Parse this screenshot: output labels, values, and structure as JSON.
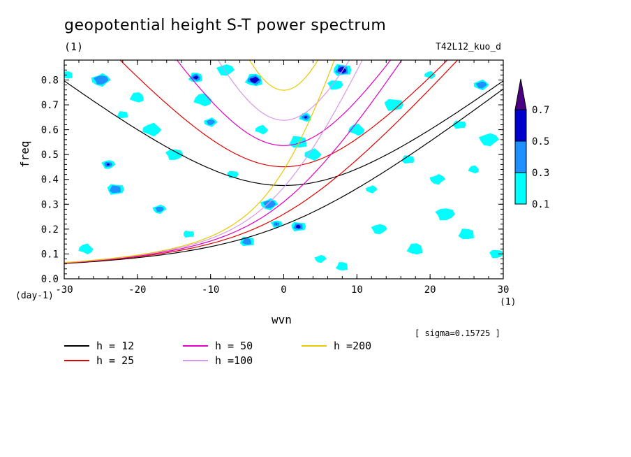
{
  "title": "geopotential height S-T power spectrum",
  "units_top": "(1)",
  "run_label": "T42L12_kuo_d",
  "xlabel": "wvn",
  "ylabel": "freq",
  "y_units": "(day-1)",
  "x_units": "(1)",
  "sigma_text": "[ sigma=0.15725 ]",
  "chart_data": {
    "type": "contour",
    "xlabel": "wvn",
    "ylabel": "freq",
    "xlim": [
      -30,
      30
    ],
    "ylim": [
      0,
      0.88
    ],
    "x_ticks": [
      -30,
      -20,
      -10,
      0,
      10,
      20,
      30
    ],
    "x_tick_labels": [
      "-30",
      "-20",
      "-10",
      "0",
      "10",
      "20",
      "30"
    ],
    "y_ticks": [
      0,
      0.1,
      0.2,
      0.3,
      0.4,
      0.5,
      0.6,
      0.7,
      0.8
    ],
    "y_tick_labels": [
      "0.0",
      "0.1",
      "0.2",
      "0.3",
      "0.4",
      "0.5",
      "0.6",
      "0.7",
      "0.8"
    ],
    "colorbar": {
      "levels": [
        0.1,
        0.3,
        0.5,
        0.7
      ],
      "level_labels": [
        "0.1",
        "0.3",
        "0.5",
        "0.7"
      ],
      "colors": [
        "#00ffff",
        "#1e90ff",
        "#0000cd",
        "#4b0082"
      ]
    },
    "dispersion_curves": [
      {
        "name": "h = 12",
        "color": "#000000",
        "h": 12
      },
      {
        "name": "h = 25",
        "color": "#e00000",
        "h": 25
      },
      {
        "name": "h = 50",
        "color": "#e000c0",
        "h": 50
      },
      {
        "name": "h =100",
        "color": "#d898e8",
        "h": 100
      },
      {
        "name": "h =200",
        "color": "#e8c800",
        "h": 200
      }
    ],
    "spots": [
      [
        -29.5,
        0.82,
        0.15
      ],
      [
        -27,
        0.12,
        0.15
      ],
      [
        -25,
        0.8,
        0.35
      ],
      [
        -24,
        0.46,
        0.55
      ],
      [
        -23,
        0.36,
        0.3
      ],
      [
        -22,
        0.66,
        0.15
      ],
      [
        -20,
        0.73,
        0.12
      ],
      [
        -18,
        0.6,
        0.12
      ],
      [
        -17,
        0.28,
        0.3
      ],
      [
        -15,
        0.5,
        0.12
      ],
      [
        -13,
        0.18,
        0.15
      ],
      [
        -12,
        0.81,
        0.55
      ],
      [
        -11,
        0.72,
        0.15
      ],
      [
        -10,
        0.63,
        0.3
      ],
      [
        -8,
        0.84,
        0.15
      ],
      [
        -7,
        0.42,
        0.12
      ],
      [
        -5,
        0.15,
        0.3
      ],
      [
        -4,
        0.8,
        0.55
      ],
      [
        -3,
        0.6,
        0.12
      ],
      [
        -2,
        0.3,
        0.3
      ],
      [
        -1,
        0.22,
        0.55
      ],
      [
        2,
        0.21,
        0.55
      ],
      [
        2,
        0.55,
        0.15
      ],
      [
        3,
        0.65,
        0.55
      ],
      [
        4,
        0.5,
        0.15
      ],
      [
        5,
        0.08,
        0.15
      ],
      [
        7,
        0.78,
        0.12
      ],
      [
        8,
        0.84,
        0.55
      ],
      [
        8,
        0.05,
        0.12
      ],
      [
        10,
        0.6,
        0.15
      ],
      [
        12,
        0.36,
        0.12
      ],
      [
        13,
        0.2,
        0.15
      ],
      [
        15,
        0.7,
        0.12
      ],
      [
        17,
        0.48,
        0.15
      ],
      [
        18,
        0.12,
        0.12
      ],
      [
        20,
        0.82,
        0.15
      ],
      [
        21,
        0.4,
        0.12
      ],
      [
        22,
        0.26,
        0.15
      ],
      [
        24,
        0.62,
        0.15
      ],
      [
        25,
        0.18,
        0.12
      ],
      [
        26,
        0.44,
        0.12
      ],
      [
        27,
        0.78,
        0.3
      ],
      [
        28,
        0.56,
        0.12
      ],
      [
        29,
        0.1,
        0.15
      ]
    ]
  }
}
